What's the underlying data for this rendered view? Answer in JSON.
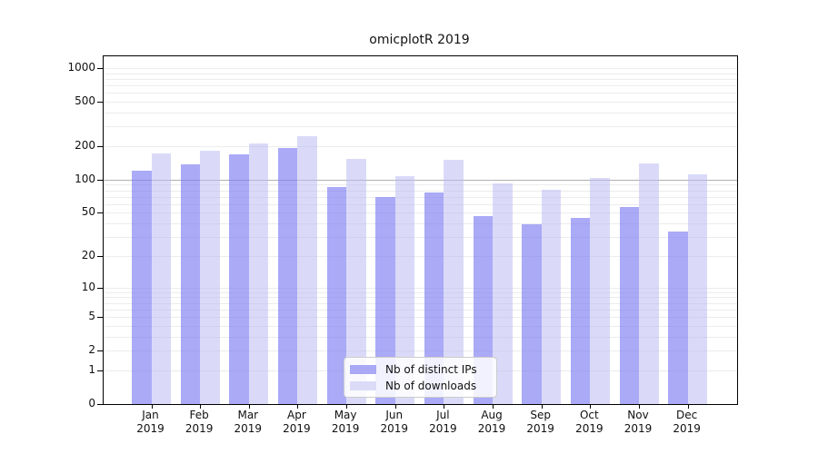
{
  "title": "omicplotR 2019",
  "colors": {
    "bar_distinct_ips_fill": "rgba(125,125,242,0.65)",
    "bar_downloads_fill": "rgba(188,188,242,0.55)",
    "legend_swatch_distinct_ips": "#a9a9f5",
    "legend_swatch_downloads": "#dbdbf8",
    "grid_minor": "#ececec",
    "grid_emphasis": "#b0b0b0",
    "axis_line": "#000000"
  },
  "legend": {
    "items": [
      {
        "label": "Nb of distinct IPs",
        "series": "distinct-ips"
      },
      {
        "label": "Nb of downloads",
        "series": "downloads"
      }
    ]
  },
  "y_axis": {
    "ticks": [
      0,
      1,
      2,
      5,
      10,
      20,
      50,
      100,
      200,
      500,
      1000
    ],
    "gridline_values_minor": [
      1,
      2,
      3,
      4,
      5,
      6,
      7,
      8,
      9,
      10,
      20,
      30,
      40,
      50,
      60,
      70,
      80,
      90,
      200,
      300,
      400,
      500,
      600,
      700,
      800,
      900,
      1000
    ],
    "gridline_values_emphasis": [
      100
    ]
  },
  "x_axis": {
    "months": [
      "Jan",
      "Feb",
      "Mar",
      "Apr",
      "May",
      "Jun",
      "Jul",
      "Aug",
      "Sep",
      "Oct",
      "Nov",
      "Dec"
    ],
    "year": "2019"
  },
  "chart_data": {
    "type": "bar",
    "title": "omicplotR 2019",
    "categories": [
      "Jan 2019",
      "Feb 2019",
      "Mar 2019",
      "Apr 2019",
      "May 2019",
      "Jun 2019",
      "Jul 2019",
      "Aug 2019",
      "Sep 2019",
      "Oct 2019",
      "Nov 2019",
      "Dec 2019"
    ],
    "series": [
      {
        "name": "Nb of distinct IPs",
        "values": [
          120,
          137,
          169,
          194,
          85,
          70,
          76,
          47,
          39,
          45,
          57,
          34
        ]
      },
      {
        "name": "Nb of downloads",
        "values": [
          172,
          183,
          212,
          246,
          153,
          108,
          151,
          93,
          81,
          103,
          140,
          112
        ]
      }
    ],
    "xlabel": "",
    "ylabel": "",
    "yscale": "log1p",
    "y_ticks": [
      0,
      1,
      2,
      5,
      10,
      20,
      50,
      100,
      200,
      500,
      1000
    ],
    "ylim": [
      0,
      1275
    ],
    "grid": true,
    "legend_position": "lower-center-inside"
  }
}
